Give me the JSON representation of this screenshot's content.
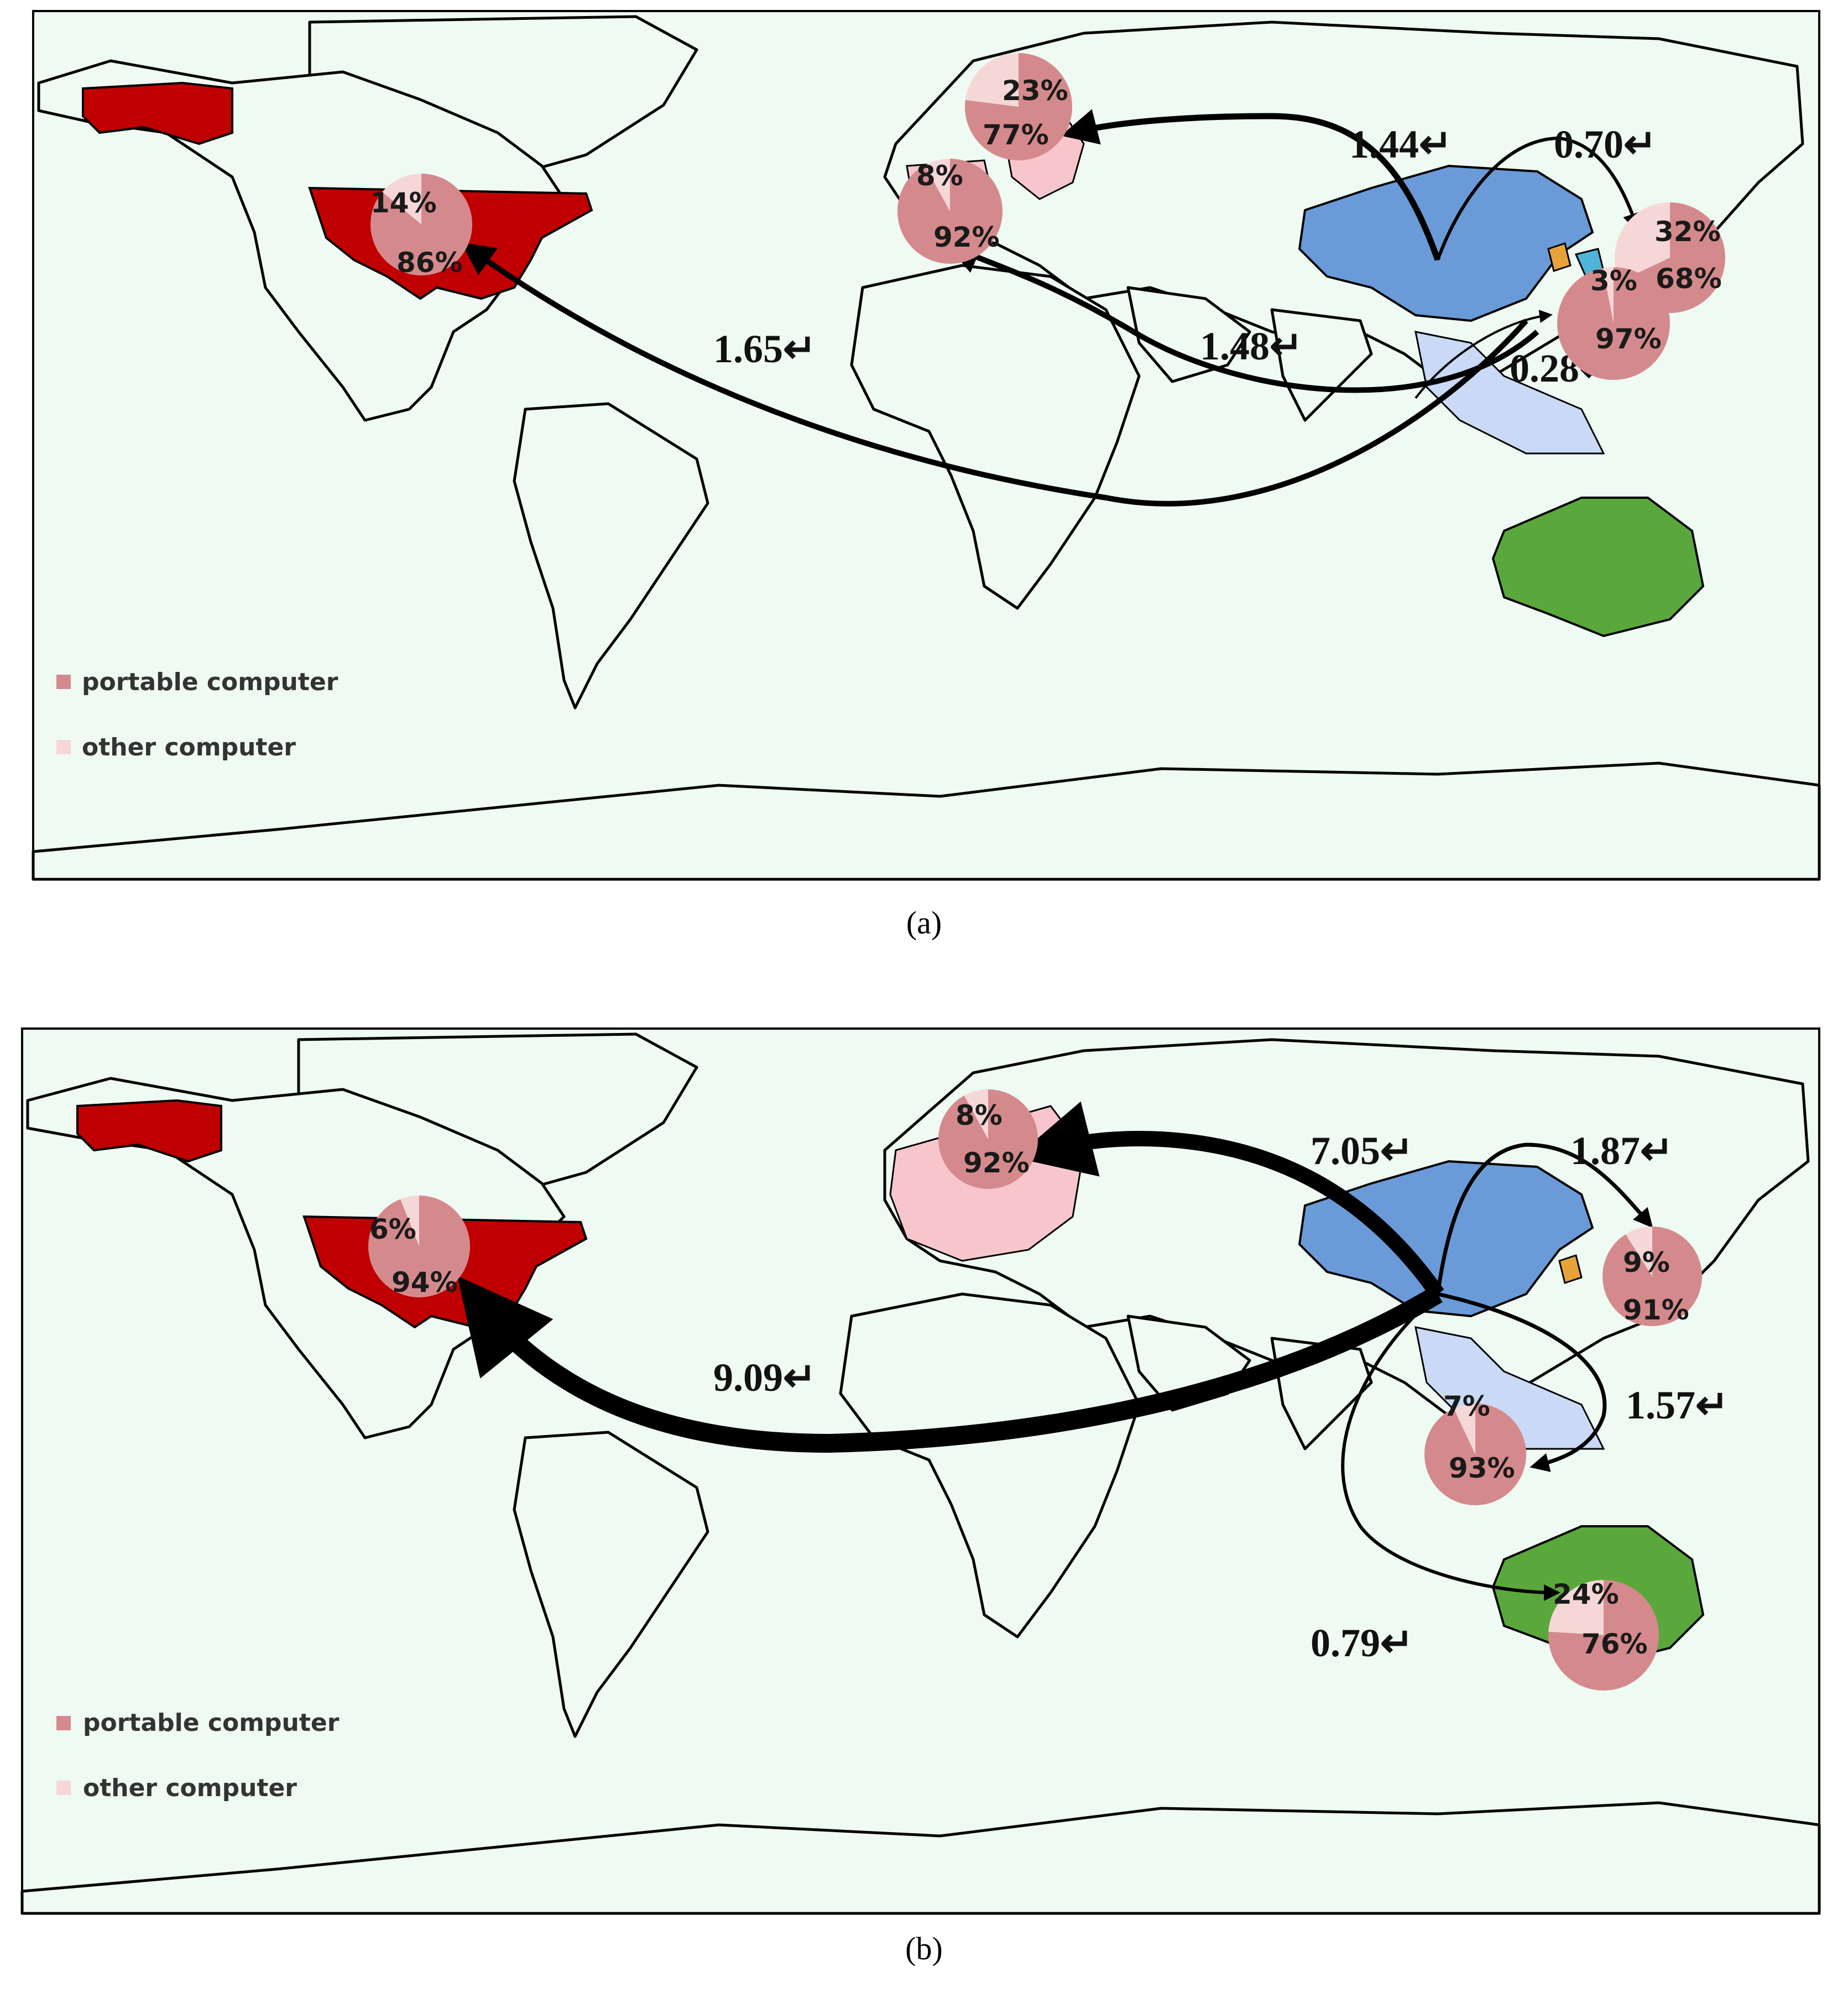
{
  "colors": {
    "ocean": "#eefaf2",
    "usa": "#c00000",
    "china": "#6a9bd8",
    "australia": "#5aa83c",
    "southeast_asia": "#c9d9f6",
    "europe_light": "#f7c6cc",
    "portable_computer": "#d48a8c",
    "other_computer": "#f6d7d8",
    "japan": "#e8a23a",
    "korea": "#4fb4d8"
  },
  "legend": {
    "portable_label": "portable computer",
    "other_label": "other computer"
  },
  "panels": [
    {
      "caption": "(a)",
      "pies": [
        {
          "region": "usa",
          "top_label": "14%",
          "bottom_label": "86%",
          "portable": 0.86,
          "other": 0.14
        },
        {
          "region": "eastern-europe",
          "top_label": "23%",
          "bottom_label": "77%",
          "portable": 0.77,
          "other": 0.23
        },
        {
          "region": "western-europe",
          "top_label": "8%",
          "bottom_label": "92%",
          "portable": 0.92,
          "other": 0.08
        },
        {
          "region": "japan",
          "top_label": "32%",
          "bottom_label": "68%",
          "portable": 0.68,
          "other": 0.32
        },
        {
          "region": "southeast-asia",
          "top_label": "3%",
          "bottom_label": "97%",
          "portable": 0.97,
          "other": 0.03
        }
      ],
      "flows": [
        {
          "from": "southeast-asia",
          "to": "usa",
          "label": "1.65↵"
        },
        {
          "from": "china",
          "to": "eastern-europe",
          "label": "1.44↵"
        },
        {
          "from": "china",
          "to": "japan",
          "label": "0.70↵"
        },
        {
          "from": "southeast-asia",
          "to": "western-europe",
          "label": "1.48↵"
        },
        {
          "from": "south-asia",
          "to": "southeast-asia",
          "label": "0.28↵"
        }
      ]
    },
    {
      "caption": "(b)",
      "pies": [
        {
          "region": "usa",
          "top_label": "6%",
          "bottom_label": "94%",
          "portable": 0.94,
          "other": 0.06
        },
        {
          "region": "europe",
          "top_label": "8%",
          "bottom_label": "92%",
          "portable": 0.92,
          "other": 0.08
        },
        {
          "region": "japan",
          "top_label": "9%",
          "bottom_label": "91%",
          "portable": 0.91,
          "other": 0.09
        },
        {
          "region": "southeast-asia",
          "top_label": "7%",
          "bottom_label": "93%",
          "portable": 0.93,
          "other": 0.07
        },
        {
          "region": "australia",
          "top_label": "24%",
          "bottom_label": "76%",
          "portable": 0.76,
          "other": 0.24
        }
      ],
      "flows": [
        {
          "from": "china",
          "to": "usa",
          "label": "9.09↵"
        },
        {
          "from": "china",
          "to": "europe",
          "label": "7.05↵"
        },
        {
          "from": "china",
          "to": "japan",
          "label": "1.87↵"
        },
        {
          "from": "china",
          "to": "southeast-asia",
          "label": "1.57↵"
        },
        {
          "from": "china",
          "to": "australia",
          "label": "0.79↵"
        }
      ]
    }
  ]
}
